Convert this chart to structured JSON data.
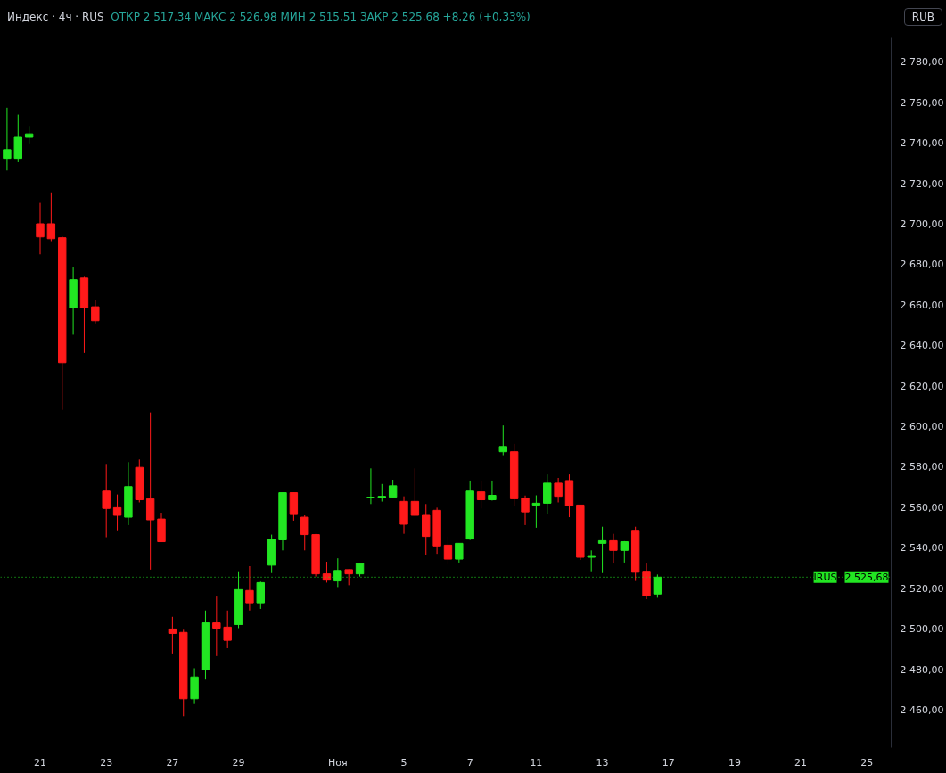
{
  "chart_data": {
    "type": "candlestick",
    "title": "Индекс · 4ч · RUS",
    "subtitle": "ОТКР 2 517,34  МАКС 2 526,98  МИН 2 515,51  ЗАКР 2 525,68  +8,26 (+0,33%)",
    "categories": [
      null,
      null,
      null,
      "21",
      null,
      null,
      null,
      null,
      null,
      "23",
      null,
      null,
      null,
      null,
      null,
      "27",
      null,
      null,
      null,
      null,
      null,
      "29",
      null,
      null,
      null,
      null,
      null,
      null,
      null,
      null,
      "Ноя",
      null,
      null,
      null,
      null,
      null,
      "5",
      null,
      null,
      null,
      null,
      null,
      "7",
      null,
      null,
      null,
      null,
      null,
      "11",
      null,
      null,
      null,
      null,
      null,
      "13",
      null,
      null,
      null,
      null,
      null,
      "17",
      null,
      null,
      null,
      null,
      null,
      "19",
      null,
      null,
      null,
      null,
      null,
      "21",
      null,
      null,
      null,
      null,
      null,
      "25",
      null,
      null
    ],
    "ohlc": [
      [
        2732.5,
        2757.5,
        2726.5,
        2736.8
      ],
      [
        2732.5,
        2754.1,
        2730.6,
        2742.9
      ],
      [
        2742.9,
        2748.5,
        2739.9,
        2744.6
      ],
      [
        2700.2,
        2710.5,
        2685.1,
        2693.7
      ],
      [
        2700.2,
        2715.7,
        2691.6,
        2692.8
      ],
      [
        2693.3,
        2694,
        2608.3,
        2631.6
      ],
      [
        2658.8,
        2678.6,
        2645.4,
        2672.6
      ],
      [
        2673.4,
        2674,
        2636.4,
        2658.8
      ],
      [
        2659.2,
        2662.7,
        2651,
        2652.3
      ],
      [
        2568.2,
        2581.6,
        2545.4,
        2559.6
      ],
      [
        2560,
        2566.5,
        2548.4,
        2556.2
      ],
      [
        2555.3,
        2582.5,
        2551.4,
        2570.4
      ],
      [
        2579.9,
        2583.8,
        2562.6,
        2563.9
      ],
      [
        2564.4,
        2607,
        2529.4,
        2554
      ],
      [
        2554.4,
        2557.5,
        2543,
        2543.2
      ],
      [
        2500.1,
        2506.1,
        2488,
        2497.9
      ],
      [
        2498.4,
        2499.7,
        2457,
        2465.6
      ],
      [
        2465.6,
        2480.7,
        2463,
        2476.4
      ],
      [
        2479.8,
        2509.2,
        2475.1,
        2503.1
      ],
      [
        2503.1,
        2516.1,
        2486.7,
        2500.5
      ],
      [
        2501,
        2509.2,
        2490.6,
        2494.5
      ],
      [
        2502.3,
        2528.6,
        2500.5,
        2519.5
      ],
      [
        2519.1,
        2531.1,
        2509.2,
        2513
      ],
      [
        2513,
        2523.5,
        2510,
        2523
      ],
      [
        2531.6,
        2546.7,
        2527.7,
        2544.5
      ],
      [
        2544.1,
        2567.5,
        2538.9,
        2567.4
      ],
      [
        2567.4,
        2567.5,
        2553.6,
        2556.6
      ],
      [
        2555.3,
        2556.2,
        2538.9,
        2546.7
      ],
      [
        2546.7,
        2547,
        2526,
        2527.3
      ],
      [
        2527.3,
        2533.3,
        2523,
        2524.2
      ],
      [
        2523.8,
        2535,
        2520.8,
        2529
      ],
      [
        2529.4,
        2529.5,
        2521.7,
        2527.3
      ],
      [
        2527.3,
        2532.5,
        2526,
        2532.4
      ],
      [
        2564.8,
        2579.4,
        2561.8,
        2565.2
      ],
      [
        2564.8,
        2571.7,
        2563,
        2565.6
      ],
      [
        2565.2,
        2573.8,
        2565,
        2570.8
      ],
      [
        2563.1,
        2565.6,
        2547.1,
        2551.8
      ],
      [
        2563.1,
        2579.4,
        2556,
        2556.2
      ],
      [
        2556.2,
        2561.8,
        2536.8,
        2545.8
      ],
      [
        2558.7,
        2560,
        2537.2,
        2541.1
      ],
      [
        2541.5,
        2545.8,
        2532,
        2534.6
      ],
      [
        2534.6,
        2542.5,
        2532.9,
        2542.4
      ],
      [
        2544.5,
        2573.4,
        2544,
        2568.2
      ],
      [
        2567.8,
        2573,
        2559.6,
        2563.9
      ],
      [
        2563.9,
        2573.4,
        2563.5,
        2566.1
      ],
      [
        2587.6,
        2600.6,
        2585.9,
        2590.2
      ],
      [
        2587.6,
        2591.5,
        2560.9,
        2564.4
      ],
      [
        2564.8,
        2566,
        2551.4,
        2557.9
      ],
      [
        2561.3,
        2566.1,
        2550.1,
        2562.2
      ],
      [
        2562.2,
        2576.4,
        2557,
        2572.1
      ],
      [
        2572.1,
        2574.7,
        2562.6,
        2565.6
      ],
      [
        2573.4,
        2576.4,
        2555.3,
        2560.9
      ],
      [
        2561.3,
        2561.5,
        2534.2,
        2535.5
      ],
      [
        2535.5,
        2538.9,
        2528.6,
        2535.9
      ],
      [
        2542.4,
        2550.6,
        2527.7,
        2543.7
      ],
      [
        2543.7,
        2547.1,
        2532.4,
        2538.9
      ],
      [
        2538.9,
        2543.5,
        2532.9,
        2543.2
      ],
      [
        2548.4,
        2550.6,
        2523.8,
        2528.1
      ],
      [
        2528.6,
        2532.4,
        2514.8,
        2516.5
      ],
      [
        2517.34,
        2526.98,
        2515.51,
        2525.68
      ],
      null,
      null,
      null,
      null,
      null,
      null,
      null,
      null,
      null,
      null,
      null,
      null,
      null,
      null,
      null,
      null,
      null,
      null,
      null,
      null,
      null
    ],
    "colors": [
      "#22e622",
      "#22e622",
      "#22e622",
      "#ff1a1a",
      "#ff1a1a",
      "#ff1a1a",
      "#22e622",
      "#ff1a1a",
      "#ff1a1a",
      "#ff1a1a",
      "#ff1a1a",
      "#22e622",
      "#ff1a1a",
      "#ff1a1a",
      "#ff1a1a",
      "#ff1a1a",
      "#ff1a1a",
      "#22e622",
      "#22e622",
      "#ff1a1a",
      "#ff1a1a",
      "#22e622",
      "#ff1a1a",
      "#22e622",
      "#22e622",
      "#22e622",
      "#ff1a1a",
      "#ff1a1a",
      "#ff1a1a",
      "#ff1a1a",
      "#22e622",
      "#ff1a1a",
      "#22e622",
      "#22e622",
      "#22e622",
      "#22e622",
      "#ff1a1a",
      "#ff1a1a",
      "#ff1a1a",
      "#ff1a1a",
      "#ff1a1a",
      "#22e622",
      "#22e622",
      "#ff1a1a",
      "#22e622",
      "#22e622",
      "#ff1a1a",
      "#ff1a1a",
      "#22e622",
      "#22e622",
      "#ff1a1a",
      "#ff1a1a",
      "#ff1a1a",
      "#22e622",
      "#22e622",
      "#ff1a1a",
      "#22e622",
      "#ff1a1a",
      "#ff1a1a",
      "#22e622",
      null,
      null,
      null,
      null,
      null,
      null,
      null,
      null,
      null,
      null,
      null,
      null,
      null,
      null,
      null,
      null,
      null,
      null,
      null,
      null,
      null
    ],
    "ylim": [
      2441.5,
      2792
    ],
    "yticks": [
      {
        "value": 2460,
        "label": "2 460,00"
      },
      {
        "value": 2480,
        "label": "2 480,00"
      },
      {
        "value": 2500,
        "label": "2 500,00"
      },
      {
        "value": 2520,
        "label": "2 520,00"
      },
      {
        "value": 2540,
        "label": "2 540,00"
      },
      {
        "value": 2560,
        "label": "2 560,00"
      },
      {
        "value": 2580,
        "label": "2 580,00"
      },
      {
        "value": 2600,
        "label": "2 600,00"
      },
      {
        "value": 2620,
        "label": "2 620,00"
      },
      {
        "value": 2640,
        "label": "2 640,00"
      },
      {
        "value": 2660,
        "label": "2 660,00"
      },
      {
        "value": 2680,
        "label": "2 680,00"
      },
      {
        "value": 2700,
        "label": "2 700,00"
      },
      {
        "value": 2720,
        "label": "2 720,00"
      },
      {
        "value": 2740,
        "label": "2 740,00"
      },
      {
        "value": 2760,
        "label": "2 760,00"
      },
      {
        "value": 2780,
        "label": "2 780,00"
      }
    ],
    "ref_lines": [
      {
        "axis": "y",
        "value": 2525.68,
        "label": "IRUS",
        "color": "#22e622",
        "line_style": "dotted"
      }
    ],
    "annotations": [
      "RUB",
      {
        "text": "2 525,68",
        "y": 2525.68
      }
    ],
    "grid": false
  }
}
